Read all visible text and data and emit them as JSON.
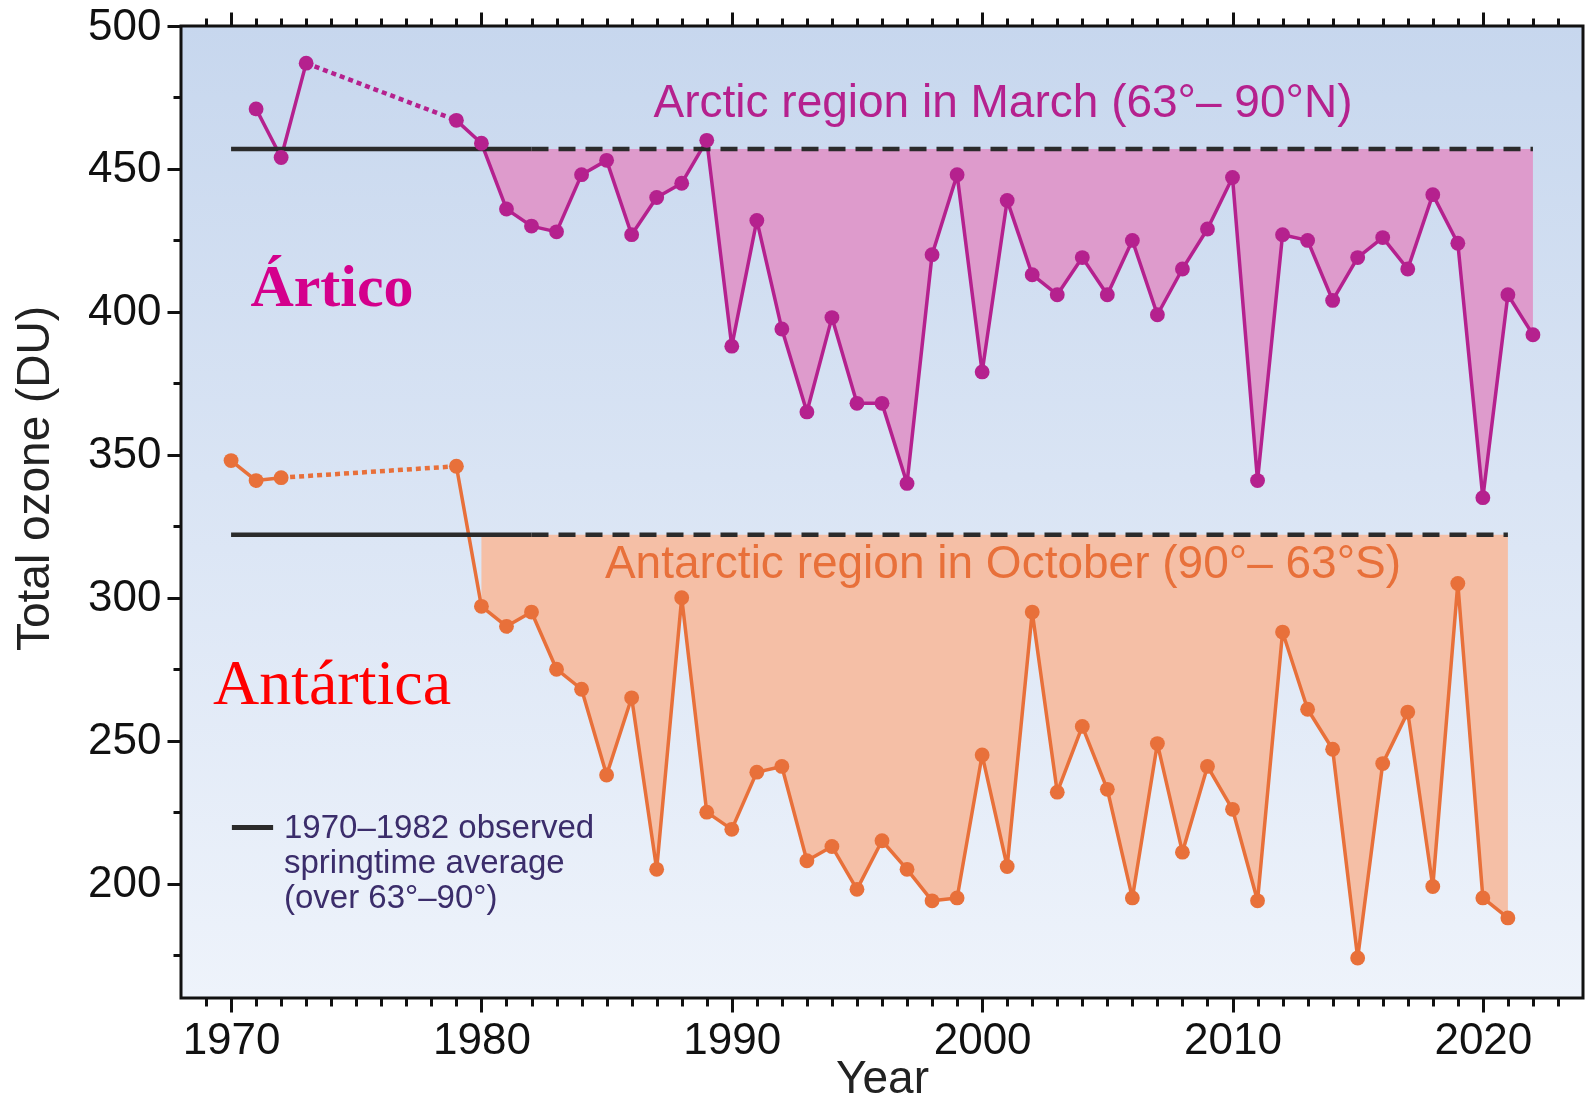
{
  "chart_data": {
    "type": "line",
    "xlabel": "Year",
    "ylabel": "Total ozone (DU)",
    "xlim": [
      1968,
      2024
    ],
    "ylim": [
      160,
      500
    ],
    "xticks": [
      {
        "value": 1969,
        "label": null
      },
      1970,
      {
        "value": 1971,
        "label": null
      },
      {
        "value": 1972,
        "label": null
      },
      {
        "value": 1973,
        "label": null
      },
      {
        "value": 1974,
        "label": null
      },
      {
        "value": 1975,
        "label": null
      },
      {
        "value": 1976,
        "label": null
      },
      {
        "value": 1977,
        "label": null
      },
      {
        "value": 1978,
        "label": null
      },
      {
        "value": 1979,
        "label": null
      },
      1980,
      {
        "value": 1981,
        "label": null
      },
      {
        "value": 1982,
        "label": null
      },
      {
        "value": 1983,
        "label": null
      },
      {
        "value": 1984,
        "label": null
      },
      {
        "value": 1985,
        "label": null
      },
      {
        "value": 1986,
        "label": null
      },
      {
        "value": 1987,
        "label": null
      },
      {
        "value": 1988,
        "label": null
      },
      {
        "value": 1989,
        "label": null
      },
      1990,
      {
        "value": 1991,
        "label": null
      },
      {
        "value": 1992,
        "label": null
      },
      {
        "value": 1993,
        "label": null
      },
      {
        "value": 1994,
        "label": null
      },
      {
        "value": 1995,
        "label": null
      },
      {
        "value": 1996,
        "label": null
      },
      {
        "value": 1997,
        "label": null
      },
      {
        "value": 1998,
        "label": null
      },
      {
        "value": 1999,
        "label": null
      },
      2000,
      {
        "value": 2001,
        "label": null
      },
      {
        "value": 2002,
        "label": null
      },
      {
        "value": 2003,
        "label": null
      },
      {
        "value": 2004,
        "label": null
      },
      {
        "value": 2005,
        "label": null
      },
      {
        "value": 2006,
        "label": null
      },
      {
        "value": 2007,
        "label": null
      },
      {
        "value": 2008,
        "label": null
      },
      {
        "value": 2009,
        "label": null
      },
      2010,
      {
        "value": 2011,
        "label": null
      },
      {
        "value": 2012,
        "label": null
      },
      {
        "value": 2013,
        "label": null
      },
      {
        "value": 2014,
        "label": null
      },
      {
        "value": 2015,
        "label": null
      },
      {
        "value": 2016,
        "label": null
      },
      {
        "value": 2017,
        "label": null
      },
      {
        "value": 2018,
        "label": null
      },
      {
        "value": 2019,
        "label": null
      },
      2020,
      {
        "value": 2021,
        "label": null
      },
      {
        "value": 2022,
        "label": null
      },
      {
        "value": 2023,
        "label": null
      }
    ],
    "yticks": [
      {
        "value": 175,
        "label": null
      },
      200,
      {
        "value": 225,
        "label": null
      },
      250,
      {
        "value": 275,
        "label": null
      },
      300,
      {
        "value": 325,
        "label": null
      },
      350,
      {
        "value": 375,
        "label": null
      },
      400,
      {
        "value": 425,
        "label": null
      },
      450,
      {
        "value": 475,
        "label": null
      },
      500
    ],
    "marker": "circle",
    "line_style": "solid",
    "legend": "bottom left",
    "series": [
      {
        "name": "Arctic region in March (63°– 90°N)",
        "color": "#b5218e",
        "x": [
          1979,
          1980,
          1981,
          1982,
          1983,
          1984,
          1985,
          1986,
          1987,
          1988,
          1989,
          1990,
          1991,
          1992,
          1993,
          1994,
          1995,
          1996,
          1997,
          1998,
          1999,
          2000,
          2001,
          2002,
          2003,
          2004,
          2005,
          2006,
          2007,
          2008,
          2009,
          2010,
          2011,
          2012,
          2013,
          2014,
          2015,
          2016,
          2017,
          2018,
          2019,
          2020,
          2021,
          2022
        ],
        "values": [
          467,
          459,
          436,
          430,
          428,
          448,
          453,
          427,
          440,
          445,
          460,
          388,
          432,
          394,
          365,
          398,
          368,
          368,
          340,
          420,
          448,
          379,
          439,
          413,
          406,
          419,
          406,
          425,
          399,
          415,
          429,
          447,
          341,
          427,
          425,
          404,
          419,
          426,
          415,
          441,
          424,
          335,
          406,
          392
        ],
        "lower": [
          null,
          459,
          436,
          430,
          428,
          448,
          453,
          427,
          440,
          445,
          460,
          388,
          432,
          394,
          365,
          398,
          368,
          368,
          340,
          420,
          448,
          379,
          439,
          413,
          406,
          419,
          406,
          425,
          399,
          415,
          429,
          447,
          341,
          427,
          425,
          404,
          419,
          426,
          415,
          441,
          424,
          335,
          406,
          392
        ],
        "upper": [
          null,
          457,
          457,
          457,
          457,
          457,
          457,
          457,
          457,
          457,
          457,
          457,
          457,
          457,
          457,
          457,
          457,
          457,
          457,
          457,
          457,
          457,
          457,
          457,
          457,
          457,
          457,
          457,
          457,
          457,
          457,
          457,
          457,
          457,
          457,
          457,
          457,
          457,
          457,
          457,
          457,
          457,
          457,
          457
        ]
      },
      {
        "color": "#b5218e",
        "x": [
          1971,
          1972,
          1973
        ],
        "values": [
          471,
          454,
          487
        ]
      },
      {
        "color": "#b5218e",
        "x": [
          1973,
          1979
        ],
        "values": [
          487,
          467
        ],
        "line_style": "dotted",
        "marker": "none"
      },
      {
        "name": "Antarctic region in October (90°– 63°S)",
        "color": "#e8703a",
        "x": [
          1979,
          1980,
          1981,
          1982,
          1983,
          1984,
          1985,
          1986,
          1987,
          1988,
          1989,
          1990,
          1991,
          1992,
          1993,
          1994,
          1995,
          1996,
          1997,
          1998,
          1999,
          2000,
          2001,
          2002,
          2003,
          2004,
          2005,
          2006,
          2007,
          2008,
          2009,
          2010,
          2011,
          2012,
          2013,
          2014,
          2015,
          2016,
          2017,
          2018,
          2019,
          2020,
          2021
        ],
        "values": [
          346,
          297,
          290,
          295,
          275,
          268,
          238,
          265,
          205,
          300,
          225,
          219,
          239,
          241,
          208,
          213,
          198,
          215,
          205,
          194,
          195,
          245,
          206,
          295,
          232,
          255,
          233,
          195,
          249,
          211,
          241,
          226,
          194,
          288,
          261,
          247,
          174,
          242,
          260,
          199,
          305,
          195,
          188
        ],
        "lower": [
          null,
          297,
          290,
          295,
          275,
          268,
          238,
          265,
          205,
          300,
          225,
          219,
          239,
          241,
          208,
          213,
          198,
          215,
          205,
          194,
          195,
          245,
          206,
          295,
          232,
          255,
          233,
          195,
          249,
          211,
          241,
          226,
          194,
          288,
          261,
          247,
          174,
          242,
          260,
          199,
          305,
          195,
          188
        ],
        "upper": [
          null,
          322,
          322,
          322,
          322,
          322,
          322,
          322,
          322,
          322,
          322,
          322,
          322,
          322,
          322,
          322,
          322,
          322,
          322,
          322,
          322,
          322,
          322,
          322,
          322,
          322,
          322,
          322,
          322,
          322,
          322,
          322,
          322,
          322,
          322,
          322,
          322,
          322,
          322,
          322,
          322,
          322,
          322
        ]
      },
      {
        "color": "#e8703a",
        "x": [
          1970,
          1971,
          1972
        ],
        "values": [
          348,
          341,
          342
        ]
      },
      {
        "color": "#e8703a",
        "x": [
          1972,
          1979
        ],
        "values": [
          342,
          346
        ],
        "line_style": "dotted",
        "marker": "none"
      },
      {
        "name": "1970–1982 observed springtime average (over 63°–90°)",
        "color": "#2b2b2b",
        "x": [
          1970,
          1982
        ],
        "values": [
          457,
          457
        ],
        "marker": "none"
      },
      {
        "color": "#2b2b2b",
        "x": [
          1982,
          2022
        ],
        "values": [
          457,
          457
        ],
        "marker": "none",
        "line_style": "dashed"
      },
      {
        "color": "#2b2b2b",
        "x": [
          1970,
          1982
        ],
        "values": [
          322,
          322
        ],
        "marker": "none"
      },
      {
        "color": "#2b2b2b",
        "x": [
          1982,
          2021
        ],
        "values": [
          322,
          322
        ],
        "marker": "none",
        "line_style": "dashed"
      }
    ],
    "annotations": [
      "Ártico",
      "Antártica"
    ]
  }
}
